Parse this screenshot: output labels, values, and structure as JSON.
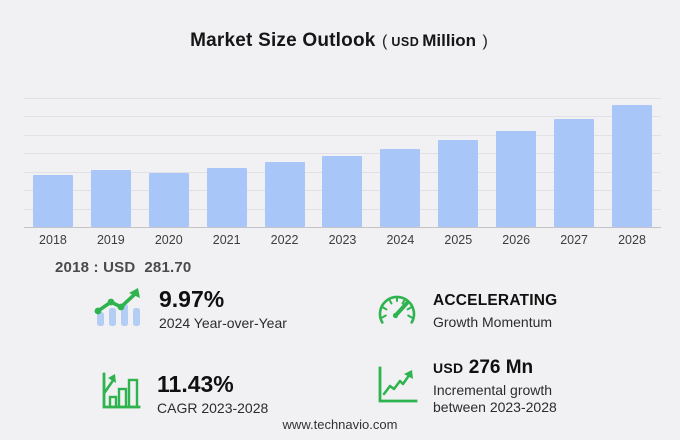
{
  "title": {
    "main": "Market Size Outlook",
    "paren_open": "(",
    "unit_small": "USD",
    "unit": "Million",
    "paren_close": ")"
  },
  "chart_data": {
    "type": "bar",
    "categories": [
      "2018",
      "2019",
      "2020",
      "2021",
      "2022",
      "2023",
      "2024",
      "2025",
      "2026",
      "2027",
      "2028"
    ],
    "values": [
      281.7,
      309,
      295,
      322,
      352,
      384,
      422,
      471,
      523,
      586,
      660
    ],
    "title": "Market Size Outlook (USD Million)",
    "xlabel": "",
    "ylabel": "",
    "ylim": [
      0,
      700
    ],
    "grid": true,
    "legend": false,
    "gridline_step": 100
  },
  "annotation_2018": {
    "label": "2018 : USD",
    "value": "281.70"
  },
  "stats": [
    {
      "icon": "bar-line-growth-icon",
      "value": "9.97%",
      "label": "2024 Year-over-Year"
    },
    {
      "icon": "gauge-icon",
      "value": "ACCELERATING",
      "label": "Growth Momentum"
    },
    {
      "icon": "bar-chart-growth-icon",
      "value": "11.43%",
      "label": "CAGR 2023-2028"
    },
    {
      "icon": "line-chart-growth-icon",
      "value_prefix": "USD",
      "value": "276 Mn",
      "label": "Incremental growth between 2023-2028"
    }
  ],
  "footer": {
    "url": "www.technavio.com"
  },
  "colors": {
    "background": "#f1f1f4",
    "bar": "#a8c6f8",
    "green": "#2fb34f",
    "icon_bar_blue": "#b4cdf5",
    "gridline": "#e1e1e5",
    "axis": "#c3c3c8",
    "text_dark": "#101010",
    "text_gray": "#4a4a4a"
  }
}
